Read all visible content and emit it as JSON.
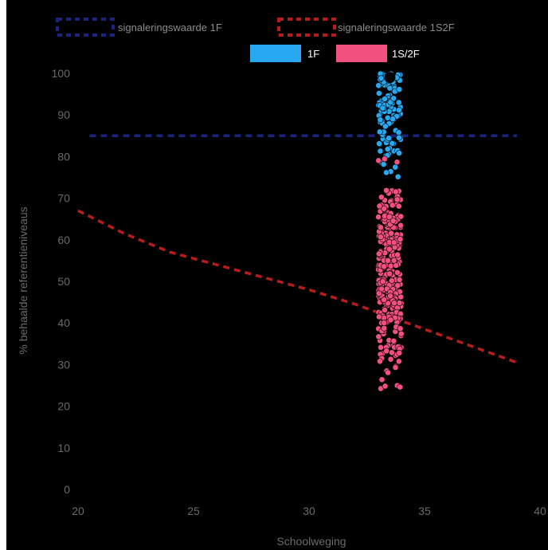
{
  "top_caption": "",
  "chart_data": {
    "type": "scatter",
    "xlabel": "Schoolweging",
    "ylabel": "% behaalde referentieniveaus",
    "xlim": [
      20,
      40
    ],
    "ylim": [
      0,
      100
    ],
    "x_ticks": [
      20,
      25,
      30,
      35,
      40
    ],
    "y_ticks": [
      0,
      10,
      20,
      30,
      40,
      50,
      60,
      70,
      80,
      90,
      100
    ],
    "grid": false,
    "legend_position": "top",
    "background": "#000000",
    "legend": [
      {
        "label": "signaleringswaarde 1F",
        "style": "dashed-box",
        "color": "#1a237e"
      },
      {
        "label": "signaleringswaarde 1S2F",
        "style": "dashed-box",
        "color": "#b71c1c"
      },
      {
        "label": "",
        "style": "hidden-text",
        "color": "#000000"
      },
      {
        "label": "1F",
        "style": "filled-box",
        "color": "#29a8f2"
      },
      {
        "label": "1S/2F",
        "style": "filled-box",
        "color": "#f2517f"
      }
    ],
    "lines": [
      {
        "name": "signaleringswaarde 1F",
        "color": "#1a237e",
        "x": [
          20.5,
          39
        ],
        "y": [
          85,
          85
        ]
      },
      {
        "name": "signaleringswaarde 1S2F",
        "color": "#b71c1c",
        "x": [
          20,
          22,
          24,
          26,
          28,
          30,
          32,
          34,
          36,
          38,
          39
        ],
        "y": [
          67,
          61.5,
          57,
          54,
          51,
          48,
          44.5,
          40.5,
          36.5,
          32.5,
          30.5
        ]
      }
    ],
    "series": [
      {
        "name": "1F",
        "color": "#29a8f2",
        "x_range": [
          33.0,
          34.0
        ],
        "y_bands": [
          [
            88,
            100,
            90
          ],
          [
            80,
            88,
            30
          ],
          [
            75,
            80,
            6
          ]
        ]
      },
      {
        "name": "1S/2F",
        "color": "#f2517f",
        "x_range": [
          33.0,
          34.0
        ],
        "y_bands": [
          [
            66,
            72,
            30
          ],
          [
            42,
            66,
            240
          ],
          [
            34,
            42,
            40
          ],
          [
            28,
            34,
            16
          ],
          [
            24,
            28,
            5
          ],
          [
            77,
            80,
            3
          ]
        ]
      }
    ],
    "highlight_point": {
      "x": 33.5,
      "y": 99,
      "color": "#000000"
    }
  }
}
